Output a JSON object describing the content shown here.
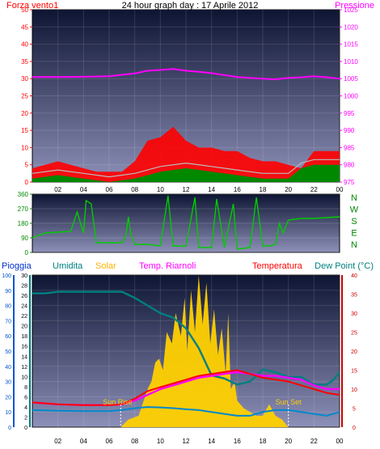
{
  "chart_data": [
    {
      "type": "line",
      "title": "24 hour graph day : 17 Aprile 2012",
      "left_label": "Forza vento1",
      "right_label": "Pressione",
      "left_ticks": [
        "0",
        "5",
        "10",
        "15",
        "20",
        "25",
        "30",
        "35",
        "40",
        "45",
        "50"
      ],
      "right_ticks": [
        "975",
        "980",
        "985",
        "990",
        "995",
        "1000",
        "1005",
        "1010",
        "1015",
        "1020",
        "1025"
      ],
      "x_ticks": [
        "02",
        "04",
        "06",
        "08",
        "10",
        "12",
        "14",
        "16",
        "18",
        "20",
        "22",
        "00"
      ],
      "ylim_left": [
        0,
        50
      ],
      "ylim_right": [
        975,
        1025
      ],
      "xlim": [
        0,
        24
      ],
      "colors": {
        "wind_gust": "#ff0000",
        "wind_avg": "#008800",
        "wind_mean": "#aaaaaa",
        "pressure": "#ff00ff"
      },
      "series": [
        {
          "axis": "right",
          "values": [
            [
              0,
              1005.5
            ],
            [
              3,
              1005.5
            ],
            [
              6,
              1005.7
            ],
            [
              8,
              1006.5
            ],
            [
              9,
              1007.3
            ],
            [
              10,
              1007.5
            ],
            [
              11,
              1007.8
            ],
            [
              12,
              1007.3
            ],
            [
              13,
              1007
            ],
            [
              14,
              1006.6
            ],
            [
              15,
              1006
            ],
            [
              16,
              1005.5
            ],
            [
              17,
              1005.2
            ],
            [
              18,
              1005
            ],
            [
              19,
              1004.8
            ],
            [
              20,
              1005.2
            ],
            [
              21,
              1005.4
            ],
            [
              22,
              1005.7
            ],
            [
              23,
              1005.4
            ],
            [
              24,
              1005
            ]
          ]
        },
        {
          "axis": "left",
          "values": [
            [
              0,
              4
            ],
            [
              1,
              5
            ],
            [
              2,
              6
            ],
            [
              3,
              5
            ],
            [
              4,
              4
            ],
            [
              5,
              3
            ],
            [
              6,
              3
            ],
            [
              7,
              3
            ],
            [
              8,
              6
            ],
            [
              9,
              12
            ],
            [
              10,
              13
            ],
            [
              11,
              16
            ],
            [
              12,
              12
            ],
            [
              13,
              10
            ],
            [
              14,
              10
            ],
            [
              15,
              9
            ],
            [
              16,
              9
            ],
            [
              17,
              7
            ],
            [
              18,
              6
            ],
            [
              19,
              6
            ],
            [
              20,
              5
            ],
            [
              21,
              4
            ],
            [
              22,
              9
            ],
            [
              23,
              9
            ],
            [
              24,
              9
            ]
          ]
        },
        {
          "axis": "left",
          "values": [
            [
              0,
              1
            ],
            [
              2,
              2
            ],
            [
              4,
              1
            ],
            [
              6,
              0
            ],
            [
              8,
              1
            ],
            [
              10,
              3
            ],
            [
              12,
              4
            ],
            [
              14,
              3
            ],
            [
              16,
              2
            ],
            [
              18,
              1
            ],
            [
              20,
              1
            ],
            [
              21,
              4
            ],
            [
              22,
              5
            ],
            [
              24,
              5
            ]
          ]
        }
      ]
    },
    {
      "type": "scatter",
      "yticks": [
        "0",
        "90",
        "180",
        "270",
        "360"
      ],
      "compass": [
        "N",
        "W",
        "S",
        "E",
        "N"
      ],
      "xlim": [
        0,
        24
      ],
      "ylim": [
        0,
        360
      ],
      "series": [
        {
          "name": "wind_direction",
          "values": [
            [
              0,
              90
            ],
            [
              1,
              120
            ],
            [
              2,
              125
            ],
            [
              3,
              130
            ],
            [
              3.5,
              250
            ],
            [
              4,
              120
            ],
            [
              4.2,
              320
            ],
            [
              4.6,
              300
            ],
            [
              5,
              60
            ],
            [
              6,
              60
            ],
            [
              7,
              60
            ],
            [
              7.3,
              100
            ],
            [
              7.5,
              220
            ],
            [
              7.7,
              110
            ],
            [
              8,
              50
            ],
            [
              9,
              50
            ],
            [
              10,
              40
            ],
            [
              10.6,
              350
            ],
            [
              11,
              40
            ],
            [
              12,
              40
            ],
            [
              12.7,
              340
            ],
            [
              13,
              30
            ],
            [
              14,
              30
            ],
            [
              14.4,
              330
            ],
            [
              15,
              30
            ],
            [
              15.7,
              300
            ],
            [
              16,
              20
            ],
            [
              17,
              30
            ],
            [
              17.5,
              340
            ],
            [
              18,
              40
            ],
            [
              18.5,
              40
            ],
            [
              19,
              50
            ],
            [
              19.3,
              180
            ],
            [
              19.6,
              120
            ],
            [
              20,
              200
            ],
            [
              21,
              210
            ],
            [
              22,
              210
            ],
            [
              23,
              215
            ],
            [
              24,
              220
            ]
          ]
        }
      ]
    },
    {
      "type": "area",
      "legend": [
        "Pioggia",
        "Umidita",
        "Solar",
        "Temp. Riarnoli",
        "Temperatura",
        "Dew Point (°C)"
      ],
      "ylim_rain": [
        0,
        100
      ],
      "ylim_humidity": [
        0,
        30
      ],
      "ylim_temp": [
        0,
        40
      ],
      "rain_ticks": [
        "0",
        "10",
        "20",
        "30",
        "40",
        "50",
        "60",
        "70",
        "80",
        "90",
        "100"
      ],
      "humidity_ticks": [
        "0",
        "2",
        "4",
        "6",
        "8",
        "10",
        "12",
        "14",
        "16",
        "18",
        "20",
        "22",
        "24",
        "26",
        "28",
        "30"
      ],
      "temp_ticks": [
        "0",
        "5",
        "10",
        "15",
        "20",
        "25",
        "30",
        "35",
        "40"
      ],
      "annotations": [
        "Sun Rise",
        "Sun Set"
      ],
      "x_ticks": [
        "02",
        "04",
        "06",
        "08",
        "10",
        "12",
        "14",
        "16",
        "18",
        "20",
        "22",
        "00"
      ],
      "xlim": [
        0,
        24
      ],
      "sunrise": 6.9,
      "sunset": 20.0,
      "colors": {
        "solar": "#ffd000",
        "humidity": "#008080",
        "temperature": "#ff0000",
        "temp_riarnoli": "#ff00ff",
        "dew_point": "#0088cc"
      },
      "series": [
        {
          "values": [
            [
              0,
              88
            ],
            [
              1,
              88
            ],
            [
              2,
              89
            ],
            [
              4,
              89
            ],
            [
              6,
              89
            ],
            [
              7,
              89
            ],
            [
              8,
              85
            ],
            [
              9,
              80
            ],
            [
              10,
              75
            ],
            [
              11,
              72
            ],
            [
              12,
              65
            ],
            [
              13,
              52
            ],
            [
              14,
              34
            ],
            [
              15,
              32
            ],
            [
              16,
              28
            ],
            [
              17,
              30
            ],
            [
              18,
              38
            ],
            [
              19,
              36
            ],
            [
              20,
              33
            ],
            [
              21,
              33
            ],
            [
              22,
              28
            ],
            [
              23,
              28
            ],
            [
              23.5,
              31
            ],
            [
              24,
              36
            ]
          ]
        },
        {
          "values": [
            [
              0,
              6.5
            ],
            [
              2,
              6
            ],
            [
              4,
              5.8
            ],
            [
              6,
              5.8
            ],
            [
              7,
              6
            ],
            [
              8,
              7.5
            ],
            [
              9,
              9.5
            ],
            [
              10,
              10.5
            ],
            [
              11,
              11.5
            ],
            [
              12,
              12.5
            ],
            [
              13,
              13.5
            ],
            [
              14,
              14
            ],
            [
              15,
              14.5
            ],
            [
              16,
              15
            ],
            [
              17,
              14
            ],
            [
              18,
              13
            ],
            [
              19,
              12.5
            ],
            [
              20,
              12
            ],
            [
              21,
              11
            ],
            [
              22,
              10
            ],
            [
              23,
              9
            ],
            [
              24,
              8.5
            ]
          ]
        },
        {
          "values": [
            [
              0,
              6.5
            ],
            [
              2,
              6
            ],
            [
              4,
              5.8
            ],
            [
              6,
              5.8
            ],
            [
              7,
              6
            ],
            [
              8,
              7
            ],
            [
              9,
              8.5
            ],
            [
              10,
              10
            ],
            [
              11,
              11
            ],
            [
              12,
              12
            ],
            [
              13,
              13
            ],
            [
              14,
              13.5
            ],
            [
              15,
              14
            ],
            [
              16,
              14.5
            ],
            [
              17,
              14
            ],
            [
              18,
              13.5
            ],
            [
              19,
              13.5
            ],
            [
              20,
              13
            ],
            [
              21,
              12.5
            ],
            [
              22,
              11
            ],
            [
              23,
              10
            ],
            [
              24,
              10
            ]
          ]
        },
        {
          "values": [
            [
              0,
              4.5
            ],
            [
              2,
              4.3
            ],
            [
              4,
              4.2
            ],
            [
              6,
              4.2
            ],
            [
              7,
              4.5
            ],
            [
              8,
              5
            ],
            [
              9,
              5.3
            ],
            [
              10,
              5.2
            ],
            [
              11,
              5
            ],
            [
              12,
              4.7
            ],
            [
              13,
              4.5
            ],
            [
              14,
              4
            ],
            [
              15,
              3.5
            ],
            [
              16,
              3
            ],
            [
              17,
              3
            ],
            [
              18,
              4
            ],
            [
              19,
              4.5
            ],
            [
              20,
              4.5
            ],
            [
              21,
              4
            ],
            [
              22,
              3.5
            ],
            [
              23,
              3
            ],
            [
              24,
              4
            ]
          ]
        },
        {
          "values": [
            [
              6.9,
              0
            ],
            [
              7.5,
              2
            ],
            [
              8.3,
              3
            ],
            [
              8.6,
              6
            ],
            [
              9,
              10
            ],
            [
              9.3,
              12
            ],
            [
              9.6,
              17
            ],
            [
              9.9,
              18
            ],
            [
              10.2,
              15
            ],
            [
              10.5,
              25
            ],
            [
              10.9,
              22
            ],
            [
              11.2,
              30
            ],
            [
              11.6,
              24
            ],
            [
              11.9,
              34
            ],
            [
              12.1,
              20
            ],
            [
              12.4,
              36
            ],
            [
              12.7,
              25
            ],
            [
              13,
              40
            ],
            [
              13.3,
              27
            ],
            [
              13.6,
              38
            ],
            [
              13.9,
              22
            ],
            [
              14.2,
              31
            ],
            [
              14.5,
              19
            ],
            [
              14.8,
              26
            ],
            [
              15.1,
              14
            ],
            [
              15.3,
              30
            ],
            [
              15.5,
              10
            ],
            [
              15.8,
              12
            ],
            [
              16,
              7
            ],
            [
              16.5,
              5
            ],
            [
              17,
              4
            ],
            [
              17.5,
              3
            ],
            [
              18,
              3
            ],
            [
              18.5,
              6
            ],
            [
              19,
              3
            ],
            [
              19.5,
              2
            ],
            [
              20,
              0
            ]
          ]
        },
        {
          "values": [
            [
              0,
              0
            ],
            [
              24,
              0
            ]
          ]
        }
      ]
    }
  ]
}
